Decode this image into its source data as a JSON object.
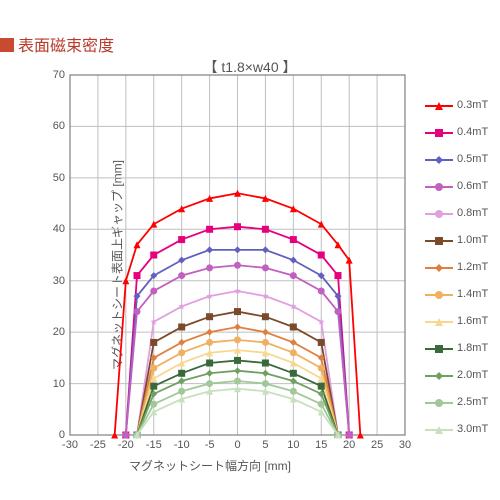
{
  "section_title": "表面磁束密度",
  "chart_subtitle": "【 t1.8×w40 】",
  "axis_y_label": "マグネットシート表面上ギャップ [mm]",
  "axis_x_label": "マグネットシート幅方向 [mm]",
  "chart": {
    "type": "line",
    "background_color": "#ffffff",
    "grid_color": "#bfbfbf",
    "plot_border_color": "#808080",
    "xlim": [
      -30,
      30
    ],
    "ylim": [
      0,
      70
    ],
    "xticks": [
      -30,
      -25,
      -20,
      -15,
      -10,
      -5,
      0,
      5,
      10,
      15,
      20,
      25,
      30
    ],
    "yticks": [
      0,
      10,
      20,
      30,
      40,
      50,
      60,
      70
    ],
    "x_categories": [
      -22,
      -20,
      -18,
      -15,
      -10,
      -5,
      0,
      5,
      10,
      15,
      18,
      20,
      22
    ],
    "series": [
      {
        "label": "0.3mT",
        "color": "#ff0000",
        "marker": "triangle",
        "y": [
          0,
          30,
          37,
          41,
          44,
          46,
          47,
          46,
          44,
          41,
          37,
          34,
          0
        ]
      },
      {
        "label": "0.4mT",
        "color": "#e6007e",
        "marker": "square",
        "y": [
          null,
          0,
          31,
          35,
          38,
          40,
          40.5,
          40,
          38,
          35,
          31,
          0,
          null
        ]
      },
      {
        "label": "0.5mT",
        "color": "#6060c0",
        "marker": "diamond",
        "y": [
          null,
          0,
          27,
          31,
          34,
          36,
          36,
          36,
          34,
          31,
          27,
          0,
          null
        ]
      },
      {
        "label": "0.6mT",
        "color": "#c060c0",
        "marker": "circle",
        "y": [
          null,
          0,
          24,
          28,
          31,
          32.5,
          33,
          32.5,
          31,
          28,
          24,
          0,
          null
        ]
      },
      {
        "label": "0.8mT",
        "color": "#e0a0e0",
        "marker": "star",
        "y": [
          null,
          null,
          0,
          22,
          25,
          27,
          28,
          27,
          25,
          22,
          0,
          null,
          null
        ]
      },
      {
        "label": "1.0mT",
        "color": "#7a4a2a",
        "marker": "square",
        "y": [
          null,
          null,
          0,
          18,
          21,
          23,
          24,
          23,
          21,
          18,
          0,
          null,
          null
        ]
      },
      {
        "label": "1.2mT",
        "color": "#e08040",
        "marker": "diamond",
        "y": [
          null,
          null,
          0,
          15,
          18,
          20,
          21,
          20,
          18,
          15,
          0,
          null,
          null
        ]
      },
      {
        "label": "1.4mT",
        "color": "#f0b060",
        "marker": "circle",
        "y": [
          null,
          null,
          0,
          13,
          16,
          18,
          18.5,
          18,
          16,
          13,
          0,
          null,
          null
        ]
      },
      {
        "label": "1.6mT",
        "color": "#f8d890",
        "marker": "triangle",
        "y": [
          null,
          null,
          0,
          11,
          14,
          16,
          16.5,
          16,
          14,
          11,
          0,
          null,
          null
        ]
      },
      {
        "label": "1.8mT",
        "color": "#3a6a3a",
        "marker": "square",
        "y": [
          null,
          null,
          0,
          9.5,
          12,
          14,
          14.5,
          14,
          12,
          9.5,
          0,
          null,
          null
        ]
      },
      {
        "label": "2.0mT",
        "color": "#70a060",
        "marker": "diamond",
        "y": [
          null,
          null,
          0,
          8,
          10.5,
          12,
          12.5,
          12,
          10.5,
          8,
          0,
          null,
          null
        ]
      },
      {
        "label": "2.5mT",
        "color": "#a0c898",
        "marker": "circle",
        "y": [
          null,
          null,
          0,
          6,
          8.5,
          10,
          10.5,
          10,
          8.5,
          6,
          0,
          null,
          null
        ]
      },
      {
        "label": "3.0mT",
        "color": "#c8e0c0",
        "marker": "triangle",
        "y": [
          null,
          null,
          0,
          4.5,
          7,
          8.5,
          9,
          8.5,
          7,
          4.5,
          0,
          null,
          null
        ]
      }
    ],
    "line_width": 1.8,
    "marker_size": 7,
    "tick_fontsize": 11,
    "label_fontsize": 12
  }
}
